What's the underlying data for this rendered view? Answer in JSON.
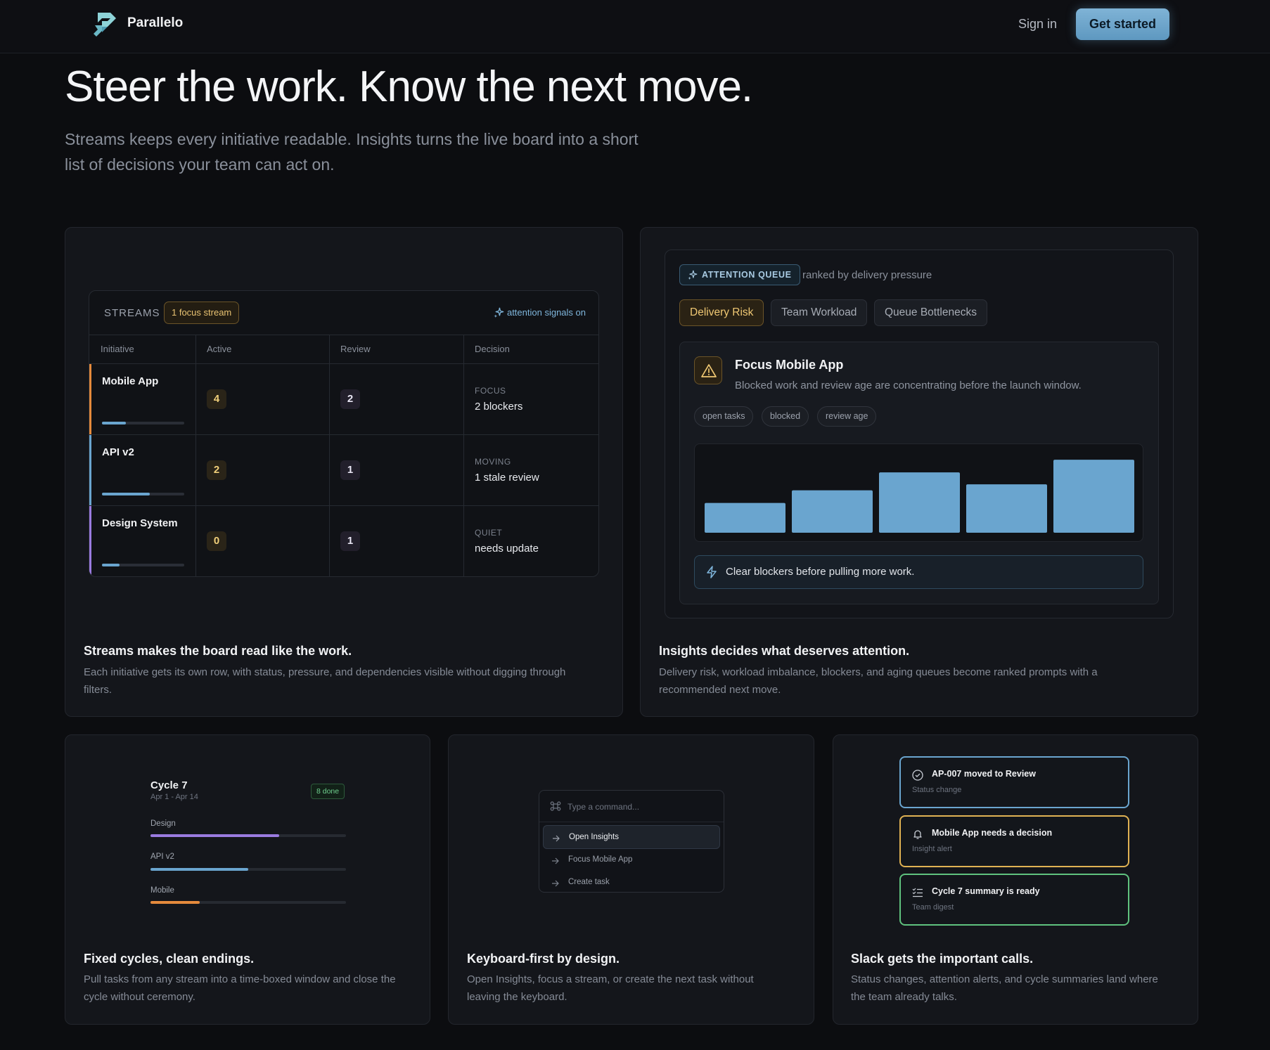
{
  "nav": {
    "brand": "Parallelo",
    "signin": "Sign in",
    "cta": "Get started"
  },
  "hero": {
    "title": "Steer the work. Know the next move.",
    "subtitle_line1": "Streams keeps every initiative readable. Insights turns the live board into a short",
    "subtitle_line2": "list of decisions your team can act on."
  },
  "streams": {
    "label": "STREAMS",
    "focus_pill": "1 focus stream",
    "signals": "attention signals on",
    "columns": [
      "Initiative",
      "Active",
      "Review",
      "Decision"
    ],
    "rows": [
      {
        "name": "Mobile App",
        "active": "4",
        "review": "2",
        "decision_kind": "FOCUS",
        "decision": "2 blockers",
        "progress": 0.29,
        "accent": "#e58a3c"
      },
      {
        "name": "API v2",
        "active": "2",
        "review": "1",
        "decision_kind": "MOVING",
        "decision": "1 stale review",
        "progress": 0.58,
        "accent": "#6aa5cf"
      },
      {
        "name": "Design System",
        "active": "0",
        "review": "1",
        "decision_kind": "QUIET",
        "decision": "needs update",
        "progress": 0.21,
        "accent": "#9a7be0"
      }
    ],
    "card_title": "Streams makes the board read like the work.",
    "card_desc_line1": "Each initiative gets its own row, with status, pressure, and dependencies visible without digging through",
    "card_desc_line2": "filters."
  },
  "insights": {
    "queue_label": "ATTENTION QUEUE",
    "ranked": "ranked by delivery pressure",
    "tabs": [
      "Delivery Risk",
      "Team Workload",
      "Queue Bottlenecks"
    ],
    "active_tab": "Delivery Risk",
    "focus_title": "Focus Mobile App",
    "focus_desc": "Blocked work and review age are concentrating before the launch window.",
    "chips": [
      "open tasks",
      "blocked",
      "review age"
    ],
    "bar_levels": [
      0.4,
      0.57,
      0.81,
      0.65,
      0.98
    ],
    "bar_color": "#6aa5cf",
    "callout": "Clear blockers before pulling more work.",
    "card_title": "Insights decides what deserves attention.",
    "card_desc_line1": "Delivery risk, workload imbalance, blockers, and aging queues become ranked prompts with a",
    "card_desc_line2": "recommended next move."
  },
  "cycles": {
    "title": "Cycle 7",
    "dates": "Apr 1 - Apr 14",
    "done_badge": "8 done",
    "tracks": [
      {
        "label": "Design",
        "progress": 0.66,
        "color": "#9a7be0"
      },
      {
        "label": "API v2",
        "progress": 0.5,
        "color": "#6aa5cf"
      },
      {
        "label": "Mobile",
        "progress": 0.25,
        "color": "#e58a3c"
      }
    ],
    "card_title": "Fixed cycles, clean endings.",
    "card_desc_line1": "Pull tasks from any stream into a time-boxed window and close the",
    "card_desc_line2": "cycle without ceremony."
  },
  "keyboard": {
    "placeholder": "Type a command...",
    "items": [
      "Open Insights",
      "Focus Mobile App",
      "Create task"
    ],
    "card_title": "Keyboard-first by design.",
    "card_desc_line1": "Open Insights, focus a stream, or create the next task without",
    "card_desc_line2": "leaving the keyboard."
  },
  "slack": {
    "notifications": [
      {
        "title": "AP-007 moved to Review",
        "sub": "Status change",
        "border": "#6aa5cf",
        "icon": "check-circle-icon"
      },
      {
        "title": "Mobile App needs a decision",
        "sub": "Insight alert",
        "border": "#e0b253",
        "icon": "bell-icon"
      },
      {
        "title": "Cycle 7 summary is ready",
        "sub": "Team digest",
        "border": "#5fc27e",
        "icon": "checklist-icon"
      }
    ],
    "card_title": "Slack gets the important calls.",
    "card_desc_line1": "Status changes, attention alerts, and cycle summaries land where",
    "card_desc_line2": "the team already talks."
  }
}
